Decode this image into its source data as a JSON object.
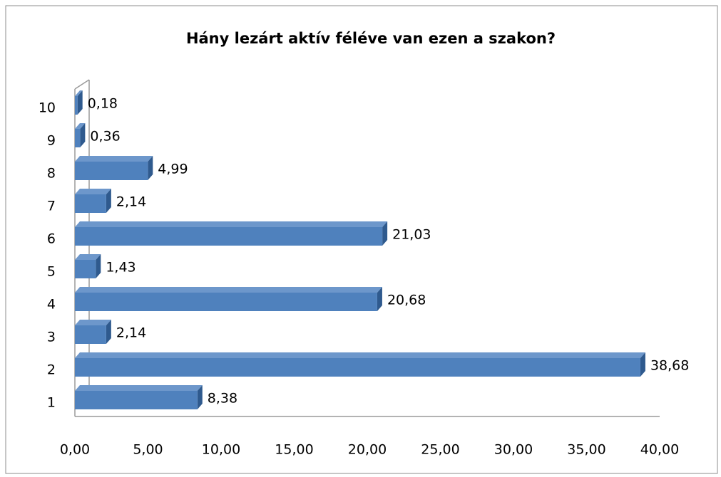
{
  "chart_data": {
    "type": "bar",
    "orientation": "horizontal",
    "title": "Hány lezárt aktív féléve van ezen a szakon?",
    "categories": [
      "1",
      "2",
      "3",
      "4",
      "5",
      "6",
      "7",
      "8",
      "9",
      "10"
    ],
    "values": [
      8.38,
      38.68,
      2.14,
      20.68,
      1.43,
      21.03,
      2.14,
      4.99,
      0.36,
      0.18
    ],
    "value_labels": [
      "8,38",
      "38,68",
      "2,14",
      "20,68",
      "1,43",
      "21,03",
      "2,14",
      "4,99",
      "0,36",
      "0,18"
    ],
    "color": "#4f81bd",
    "xlim": [
      0,
      40
    ],
    "xticks": [
      {
        "value": 0,
        "label": "0,00"
      },
      {
        "value": 5,
        "label": "5,00"
      },
      {
        "value": 10,
        "label": "10,00"
      },
      {
        "value": 15,
        "label": "15,00"
      },
      {
        "value": 20,
        "label": "20,00"
      },
      {
        "value": 25,
        "label": "25,00"
      },
      {
        "value": 30,
        "label": "30,00"
      },
      {
        "value": 35,
        "label": "35,00"
      },
      {
        "value": 40,
        "label": "40,00"
      }
    ],
    "grid": false
  }
}
